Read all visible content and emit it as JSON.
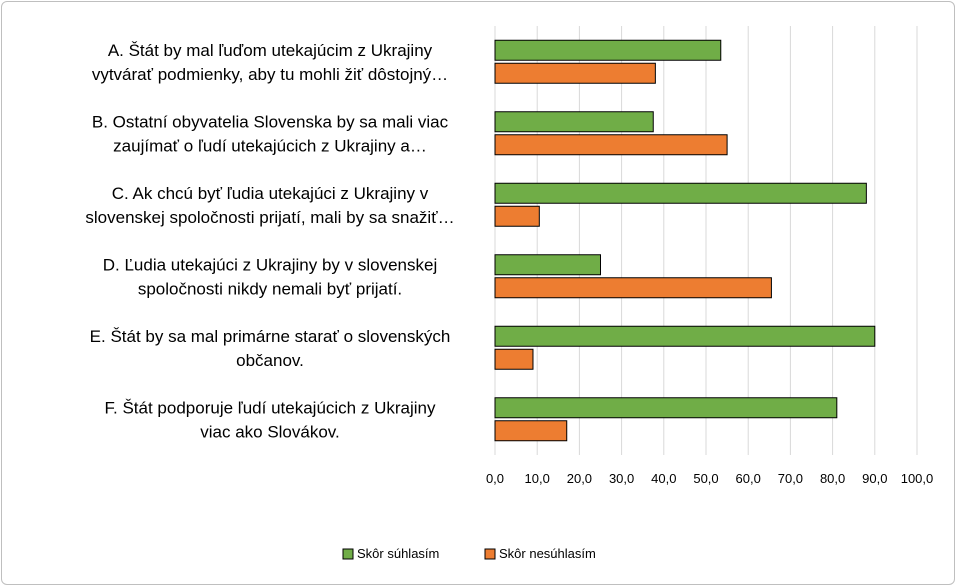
{
  "chart_data": {
    "type": "bar",
    "orientation": "horizontal",
    "categories": [
      [
        "A.  Štát by mal ľuďom utekajúcim z Ukrajiny",
        "vytvárať podmienky, aby tu mohli žiť dôstojný…"
      ],
      [
        "B. Ostatní obyvatelia Slovenska by sa mali viac",
        "zaujímať o ľudí utekajúcich z Ukrajiny a…"
      ],
      [
        "C. Ak chcú byť ľudia utekajúci z Ukrajiny v",
        "slovenskej spoločnosti prijatí, mali by sa snažiť…"
      ],
      [
        "D. Ľudia utekajúci z Ukrajiny by v slovenskej",
        "spoločnosti nikdy nemali byť prijatí."
      ],
      [
        "E. Štát by sa mal primárne starať o slovenských",
        "občanov."
      ],
      [
        "F. Štát podporuje ľudí utekajúcich z Ukrajiny",
        "viac ako Slovákov."
      ]
    ],
    "series": [
      {
        "name": "Skôr súhlasím",
        "color": "#70ad47",
        "values": [
          53.5,
          37.5,
          88.0,
          25.0,
          90.0,
          81.0
        ]
      },
      {
        "name": "Skôr nesúhlasím",
        "color": "#ed7d31",
        "values": [
          38.0,
          55.0,
          10.5,
          65.5,
          9.0,
          17.0
        ]
      }
    ],
    "xlim": [
      0,
      100
    ],
    "ticks": [
      "0,0",
      "10,0",
      "20,0",
      "30,0",
      "40,0",
      "50,0",
      "60,0",
      "70,0",
      "80,0",
      "90,0",
      "100,0"
    ],
    "grid": true,
    "legend": "bottom",
    "title": "",
    "xlabel": "",
    "ylabel": ""
  }
}
